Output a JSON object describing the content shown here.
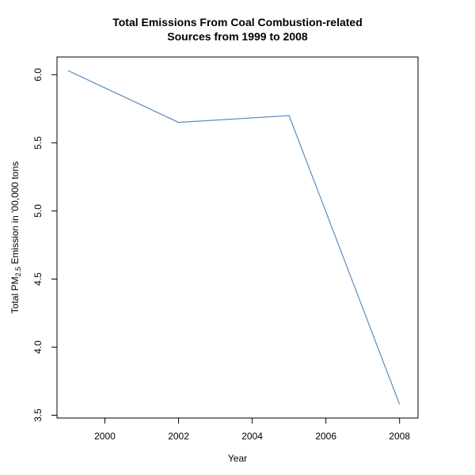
{
  "chart_data": {
    "type": "line",
    "title_line1": "Total Emissions From Coal Combustion-related",
    "title_line2": "Sources from 1999 to 2008",
    "xlabel": "Year",
    "ylabel_prefix": "Total PM",
    "ylabel_subscript": "2.5",
    "ylabel_suffix": " Emission in '00,000 tons",
    "x": [
      1999,
      2002,
      2005,
      2008
    ],
    "series": [
      {
        "values": [
          6.03,
          5.65,
          5.7,
          3.58
        ],
        "color": "#5b8dbf"
      }
    ],
    "xlim": [
      1998.7,
      2008.5
    ],
    "ylim": [
      3.48,
      6.13
    ],
    "xticks": [
      2000,
      2002,
      2004,
      2006,
      2008
    ],
    "xtick_labels": [
      "2000",
      "2002",
      "2004",
      "2006",
      "2008"
    ],
    "yticks": [
      3.5,
      4.0,
      4.5,
      5.0,
      5.5,
      6.0
    ],
    "ytick_labels": [
      "3.5",
      "4.0",
      "4.5",
      "5.0",
      "5.5",
      "6.0"
    ],
    "grid": false,
    "legend": "none"
  }
}
